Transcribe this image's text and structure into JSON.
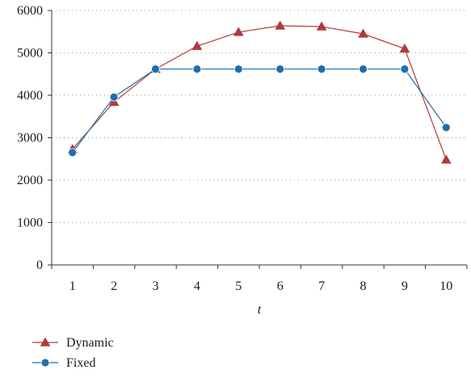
{
  "chart_data": {
    "type": "line",
    "title": "",
    "xlabel": "t",
    "ylabel": "",
    "categories": [
      "1",
      "2",
      "3",
      "4",
      "5",
      "6",
      "7",
      "8",
      "9",
      "10"
    ],
    "x": [
      1,
      2,
      3,
      4,
      5,
      6,
      7,
      8,
      9,
      10
    ],
    "ylim": [
      0,
      6000
    ],
    "yticks": [
      0,
      1000,
      2000,
      3000,
      4000,
      5000,
      6000
    ],
    "grid": "horizontal dotted",
    "legend_position": "bottom-left",
    "series": [
      {
        "name": "Dynamic",
        "marker": "triangle",
        "color": "#b23a3a",
        "values": [
          2730,
          3840,
          4620,
          5160,
          5490,
          5640,
          5620,
          5450,
          5100,
          2480
        ]
      },
      {
        "name": "Fixed",
        "marker": "circle",
        "color": "#1f6fad",
        "values": [
          2650,
          3960,
          4620,
          4620,
          4620,
          4620,
          4620,
          4620,
          4620,
          3240
        ]
      }
    ]
  }
}
